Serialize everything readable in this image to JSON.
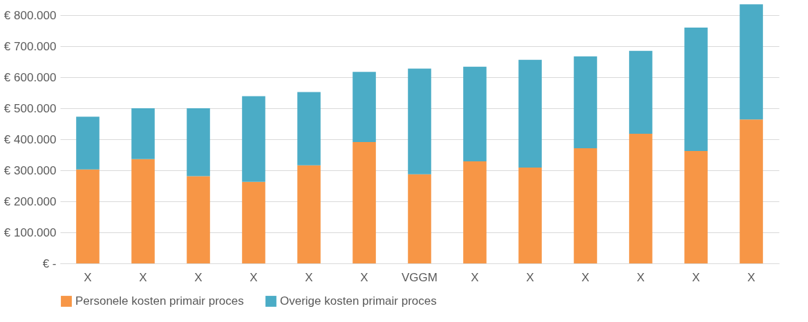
{
  "chart_data": {
    "type": "bar",
    "stacked": true,
    "categories": [
      "X",
      "X",
      "X",
      "X",
      "X",
      "X",
      "VGGM",
      "X",
      "X",
      "X",
      "X",
      "X",
      "X"
    ],
    "series": [
      {
        "name": "Personele kosten primair proces",
        "color": "#f79646",
        "values": [
          303000,
          336000,
          281000,
          263000,
          316000,
          391000,
          287000,
          329000,
          309000,
          371000,
          418000,
          362000,
          464000
        ]
      },
      {
        "name": "Overige kosten primair proces",
        "color": "#4bacc6",
        "values": [
          170000,
          164000,
          219000,
          276000,
          236000,
          226000,
          341000,
          305000,
          347000,
          296000,
          267000,
          398000,
          371000
        ]
      }
    ],
    "ylim": [
      0,
      840000
    ],
    "yticks": [
      {
        "value": 0,
        "label": "€ -"
      },
      {
        "value": 100000,
        "label": "€ 100.000"
      },
      {
        "value": 200000,
        "label": "€ 200.000"
      },
      {
        "value": 300000,
        "label": "€ 300.000"
      },
      {
        "value": 400000,
        "label": "€ 400.000"
      },
      {
        "value": 500000,
        "label": "€ 500.000"
      },
      {
        "value": 600000,
        "label": "€ 600.000"
      },
      {
        "value": 700000,
        "label": "€ 700.000"
      },
      {
        "value": 800000,
        "label": "€ 800.000"
      }
    ],
    "grid": "y",
    "legend": "bottom"
  }
}
